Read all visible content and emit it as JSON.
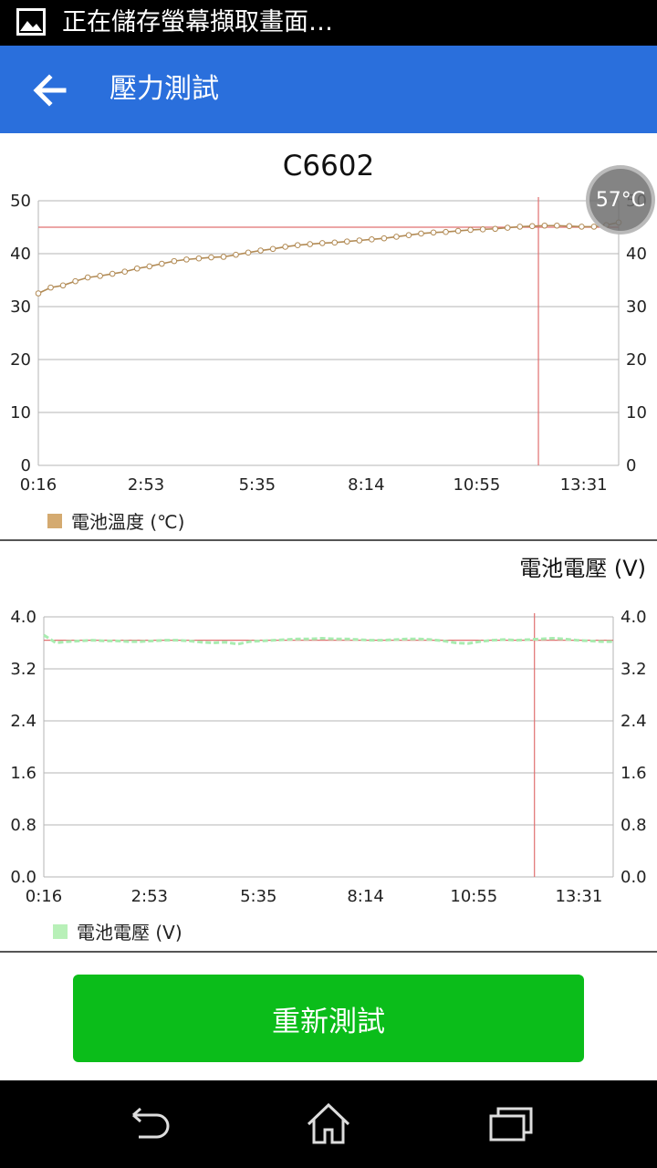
{
  "status_bar": {
    "notification_text": "正在儲存螢幕擷取畫面…",
    "notification_icon": "image-icon"
  },
  "app_bar": {
    "back_icon": "arrow-left-icon",
    "title": "壓力測試"
  },
  "temperature_chart": {
    "title": "C6602",
    "legend": "電池溫度 (℃)",
    "series_color": "#d4aa70"
  },
  "voltage_chart": {
    "title": "電池電壓 (V)",
    "legend": "電池電壓 (V)",
    "series_color": "#b8f0b8"
  },
  "floating_bubble": {
    "text": "57°C"
  },
  "retest_button": {
    "label": "重新測試",
    "color": "#0bbd1a"
  },
  "nav_bar": {
    "back": "back-icon",
    "home": "home-icon",
    "recents": "recents-icon"
  },
  "chart_data": [
    {
      "type": "line",
      "title": "C6602",
      "series": [
        {
          "name": "電池溫度 (℃)",
          "x": [
            "0:16",
            "0:34",
            "0:52",
            "1:10",
            "1:28",
            "1:46",
            "2:04",
            "2:22",
            "2:40",
            "2:58",
            "3:16",
            "3:34",
            "3:52",
            "4:10",
            "4:28",
            "4:46",
            "5:04",
            "5:22",
            "5:40",
            "5:58",
            "6:16",
            "6:34",
            "6:52",
            "7:10",
            "7:28",
            "7:46",
            "8:04",
            "8:22",
            "8:40",
            "8:58",
            "9:16",
            "9:34",
            "9:52",
            "10:10",
            "10:28",
            "10:46",
            "11:04",
            "11:22",
            "11:40",
            "11:58",
            "12:16",
            "12:34",
            "12:52",
            "13:10",
            "13:28",
            "13:46",
            "14:04",
            "14:22"
          ],
          "values": [
            32.5,
            33.6,
            34,
            34.8,
            35.5,
            35.8,
            36.2,
            36.6,
            37.2,
            37.6,
            38.1,
            38.6,
            38.9,
            39.1,
            39.3,
            39.4,
            39.8,
            40.2,
            40.6,
            40.9,
            41.3,
            41.6,
            41.8,
            42,
            42.1,
            42.3,
            42.5,
            42.7,
            42.9,
            43.2,
            43.5,
            43.8,
            44,
            44.1,
            44.3,
            44.5,
            44.6,
            44.7,
            44.9,
            45.1,
            45.2,
            45.3,
            45.3,
            45.2,
            45.1,
            45.1,
            45.4,
            45.9
          ]
        }
      ],
      "x_tick_labels": [
        "0:16",
        "2:53",
        "5:35",
        "8:14",
        "10:55",
        "13:31"
      ],
      "y_ticks": [
        0,
        10,
        20,
        30,
        40,
        50
      ],
      "ylim": [
        0,
        50
      ],
      "reference_line_y": 45,
      "cursor_x": "12:25",
      "grid": true,
      "legend_position": "bottom-left"
    },
    {
      "type": "line",
      "title": "電池電壓 (V)",
      "series": [
        {
          "name": "電池電壓 (V)",
          "x": [
            "0:16",
            "0:34",
            "0:52",
            "1:10",
            "1:28",
            "1:46",
            "2:04",
            "2:22",
            "2:40",
            "2:58",
            "3:16",
            "3:34",
            "3:52",
            "4:10",
            "4:28",
            "4:46",
            "5:04",
            "5:22",
            "5:40",
            "5:58",
            "6:16",
            "6:34",
            "6:52",
            "7:10",
            "7:28",
            "7:46",
            "8:04",
            "8:22",
            "8:40",
            "8:58",
            "9:16",
            "9:34",
            "9:52",
            "10:10",
            "10:28",
            "10:46",
            "11:04",
            "11:22",
            "11:40",
            "11:58",
            "12:16",
            "12:34",
            "12:52",
            "13:10",
            "13:28",
            "13:46",
            "14:04",
            "14:22"
          ],
          "values": [
            3.72,
            3.6,
            3.62,
            3.63,
            3.64,
            3.63,
            3.63,
            3.62,
            3.62,
            3.63,
            3.64,
            3.64,
            3.63,
            3.61,
            3.6,
            3.61,
            3.58,
            3.62,
            3.63,
            3.64,
            3.65,
            3.66,
            3.66,
            3.67,
            3.66,
            3.66,
            3.65,
            3.64,
            3.64,
            3.65,
            3.66,
            3.66,
            3.65,
            3.63,
            3.6,
            3.59,
            3.62,
            3.64,
            3.65,
            3.64,
            3.65,
            3.66,
            3.67,
            3.66,
            3.64,
            3.63,
            3.62,
            3.62
          ]
        }
      ],
      "x_tick_labels": [
        "0:16",
        "2:53",
        "5:35",
        "8:14",
        "10:55",
        "13:31"
      ],
      "y_ticks": [
        "0.0",
        "0.8",
        "1.6",
        "2.4",
        "3.2",
        "4.0"
      ],
      "ylim": [
        0,
        4.0
      ],
      "reference_line_y": 3.64,
      "cursor_x": "12:25",
      "grid": true,
      "legend_position": "bottom-left"
    }
  ]
}
